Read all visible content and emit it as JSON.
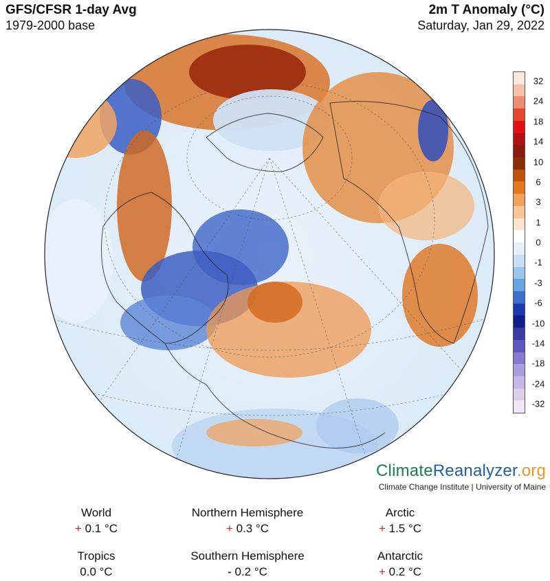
{
  "header": {
    "title_left": "GFS/CFSR 1-day Avg",
    "subtitle_left": "1979-2000 base",
    "title_right": "2m T Anomaly (°C)",
    "subtitle_right": "Saturday, Jan 29, 2022"
  },
  "legend": {
    "labels": [
      "32",
      "24",
      "18",
      "14",
      "10",
      "6",
      "3",
      "1",
      "0",
      "-1",
      "-3",
      "-6",
      "-10",
      "-14",
      "-18",
      "-24",
      "-32"
    ],
    "colors": [
      "#fbe7dc",
      "#f6c1a6",
      "#ef8d73",
      "#e6452e",
      "#e20f14",
      "#b51015",
      "#8d1a0f",
      "#8a2e04",
      "#c1520b",
      "#e4791c",
      "#f1a15a",
      "#f7c697",
      "#fde5cc",
      "#ffffff",
      "#e4f0fa",
      "#c6dff4",
      "#98c6ef",
      "#64a5e3",
      "#3a6fcf",
      "#1e39b0",
      "#101f8e",
      "#3a3ca6",
      "#5a57bf",
      "#8479cf",
      "#a99ee0",
      "#c5b8e8",
      "#dccfee",
      "#efe6f5"
    ]
  },
  "brand": {
    "name_part1": "Climate",
    "name_part2": "Reanalyzer",
    "name_part3": ".org",
    "subtitle": "Climate Change Institute | University of Maine"
  },
  "stats": [
    {
      "label": "World",
      "sign": "+",
      "value": "0.1 °C"
    },
    {
      "label": "Northern Hemisphere",
      "sign": "+",
      "value": "0.3 °C"
    },
    {
      "label": "Arctic",
      "sign": "+",
      "value": "1.5 °C"
    },
    {
      "label": "Tropics",
      "sign": "",
      "value": "0.0 °C"
    },
    {
      "label": "Southern Hemisphere",
      "sign": "-",
      "value": "0.2 °C"
    },
    {
      "label": "Antarctic",
      "sign": "+",
      "value": "0.2 °C"
    }
  ]
}
